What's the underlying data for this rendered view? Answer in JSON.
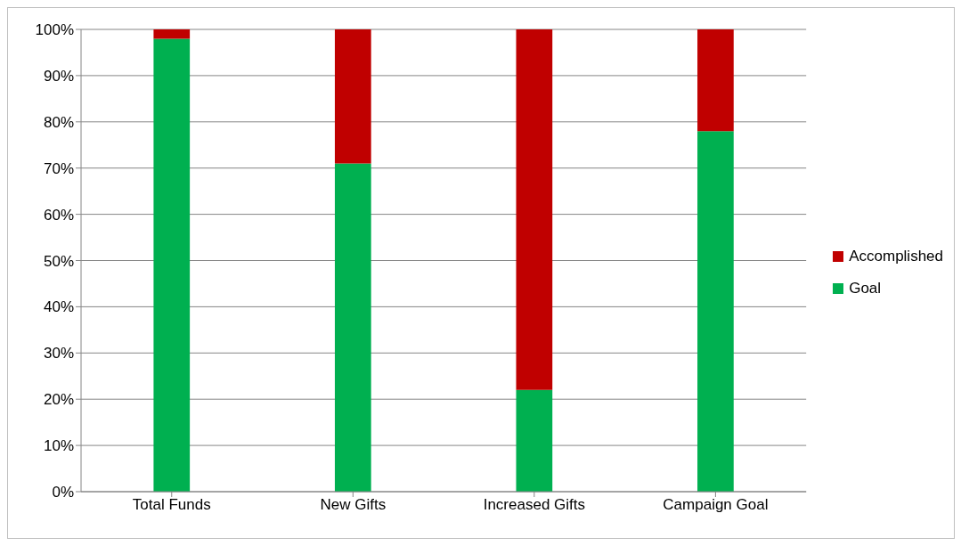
{
  "chart_data": {
    "type": "bar",
    "stacked": true,
    "categories": [
      "Total Funds",
      "New Gifts",
      "Increased Gifts",
      "Campaign Goal"
    ],
    "series": [
      {
        "name": "Goal",
        "color": "#00b050",
        "values": [
          98,
          71,
          22,
          78
        ]
      },
      {
        "name": "Accomplished",
        "color": "#c00000",
        "values": [
          2,
          29,
          78,
          22
        ]
      }
    ],
    "ylim": [
      0,
      100
    ],
    "yticks": [
      {
        "value": 0,
        "label": "0%"
      },
      {
        "value": 10,
        "label": "10%"
      },
      {
        "value": 20,
        "label": "20%"
      },
      {
        "value": 30,
        "label": "30%"
      },
      {
        "value": 40,
        "label": "40%"
      },
      {
        "value": 50,
        "label": "50%"
      },
      {
        "value": 60,
        "label": "60%"
      },
      {
        "value": 70,
        "label": "70%"
      },
      {
        "value": 80,
        "label": "80%"
      },
      {
        "value": 90,
        "label": "90%"
      },
      {
        "value": 100,
        "label": "100%"
      }
    ],
    "grid": "y",
    "legend": "right"
  }
}
